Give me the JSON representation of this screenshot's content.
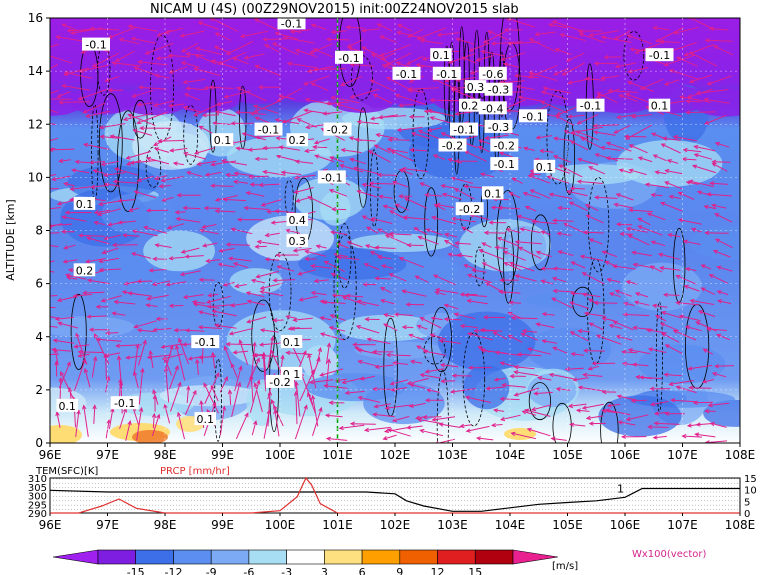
{
  "title": "NICAM U (4S) (00Z29NOV2015) init:00Z24NOV2015 slab",
  "colors": {
    "vector": "#e0208c",
    "temp_line": "#000000",
    "prcp_line": "#e03030",
    "guide_line": "#00a000"
  },
  "chart_data": [
    {
      "type": "heatmap",
      "title": "NICAM U (4S) (00Z29NOV2015) init:00Z24NOV2015 slab",
      "xlabel": "",
      "ylabel": "ALTITUDE [km]",
      "xlim": [
        96,
        108
      ],
      "ylim": [
        0,
        16
      ],
      "x_ticks": [
        "96E",
        "97E",
        "98E",
        "99E",
        "100E",
        "101E",
        "102E",
        "103E",
        "104E",
        "105E",
        "106E",
        "107E",
        "108E"
      ],
      "y_ticks": [
        "0",
        "2",
        "4",
        "6",
        "8",
        "10",
        "12",
        "14",
        "16"
      ],
      "vertical_guide_lon": 101,
      "overlay": "Wx100(vector)",
      "contour_labels": [
        {
          "lon": 96.8,
          "alt": 15.0,
          "text": "-0.1"
        },
        {
          "lon": 100.2,
          "alt": 15.8,
          "text": "-0.1"
        },
        {
          "lon": 101.2,
          "alt": 14.5,
          "text": "-0.1"
        },
        {
          "lon": 102.2,
          "alt": 13.9,
          "text": "-0.1"
        },
        {
          "lon": 102.8,
          "alt": 14.6,
          "text": "0.1"
        },
        {
          "lon": 102.9,
          "alt": 13.9,
          "text": "-0.1"
        },
        {
          "lon": 103.4,
          "alt": 13.4,
          "text": "0.3"
        },
        {
          "lon": 103.7,
          "alt": 13.9,
          "text": "-0.6"
        },
        {
          "lon": 103.8,
          "alt": 13.3,
          "text": "-0.3"
        },
        {
          "lon": 103.3,
          "alt": 12.7,
          "text": "0.2"
        },
        {
          "lon": 103.7,
          "alt": 12.6,
          "text": "-0.4"
        },
        {
          "lon": 104.4,
          "alt": 12.3,
          "text": "-0.1"
        },
        {
          "lon": 105.4,
          "alt": 12.7,
          "text": "-0.1"
        },
        {
          "lon": 106.6,
          "alt": 14.6,
          "text": "-0.1"
        },
        {
          "lon": 106.6,
          "alt": 12.7,
          "text": "0.1"
        },
        {
          "lon": 99.8,
          "alt": 11.8,
          "text": "-0.1"
        },
        {
          "lon": 100.3,
          "alt": 11.4,
          "text": "0.2"
        },
        {
          "lon": 101.0,
          "alt": 11.8,
          "text": "-0.2"
        },
        {
          "lon": 103.2,
          "alt": 11.8,
          "text": "-0.1"
        },
        {
          "lon": 103.8,
          "alt": 11.9,
          "text": "-0.3"
        },
        {
          "lon": 103.0,
          "alt": 11.2,
          "text": "-0.2"
        },
        {
          "lon": 103.9,
          "alt": 11.2,
          "text": "-0.2"
        },
        {
          "lon": 103.9,
          "alt": 10.5,
          "text": "-0.1"
        },
        {
          "lon": 104.6,
          "alt": 10.4,
          "text": "0.1"
        },
        {
          "lon": 99.0,
          "alt": 11.4,
          "text": "0.1"
        },
        {
          "lon": 100.9,
          "alt": 10.0,
          "text": "-0.1"
        },
        {
          "lon": 103.7,
          "alt": 9.4,
          "text": "0.1"
        },
        {
          "lon": 103.3,
          "alt": 8.8,
          "text": "-0.2"
        },
        {
          "lon": 96.6,
          "alt": 9.0,
          "text": "0.1"
        },
        {
          "lon": 100.3,
          "alt": 8.4,
          "text": "0.4"
        },
        {
          "lon": 100.3,
          "alt": 7.6,
          "text": "0.3"
        },
        {
          "lon": 96.6,
          "alt": 6.5,
          "text": "0.2"
        },
        {
          "lon": 98.7,
          "alt": 3.8,
          "text": "-0.1"
        },
        {
          "lon": 100.2,
          "alt": 3.8,
          "text": "0.1"
        },
        {
          "lon": 100.2,
          "alt": 2.6,
          "text": "0.1"
        },
        {
          "lon": 100.0,
          "alt": 2.3,
          "text": "-0.2"
        },
        {
          "lon": 96.3,
          "alt": 1.4,
          "text": "0.1"
        },
        {
          "lon": 97.3,
          "alt": 1.5,
          "text": "-0.1"
        },
        {
          "lon": 98.7,
          "alt": 0.9,
          "text": "0.1"
        }
      ]
    },
    {
      "type": "line",
      "xlim": [
        96,
        108
      ],
      "x_ticks": [
        "96E",
        "97E",
        "98E",
        "99E",
        "100E",
        "101E",
        "102E",
        "103E",
        "104E",
        "105E",
        "106E",
        "107E",
        "108E"
      ],
      "series": [
        {
          "name": "TEM(SFC)[K]",
          "axis": "left",
          "ylim": [
            290,
            310
          ],
          "x": [
            96,
            97,
            98,
            99,
            100,
            100.5,
            101,
            101.5,
            102,
            102.2,
            102.5,
            103,
            103.5,
            104,
            104.5,
            105,
            105.5,
            106,
            106.3,
            108
          ],
          "values": [
            303,
            302,
            302,
            302,
            302,
            302,
            302,
            302,
            301,
            297,
            294,
            291,
            291,
            293,
            295,
            296,
            297,
            299,
            304,
            304
          ]
        },
        {
          "name": "PRCP [mm/hr]",
          "axis": "right",
          "ylim": [
            0,
            15
          ],
          "x": [
            96,
            96.5,
            96.9,
            97.2,
            97.5,
            98,
            99,
            99.5,
            100,
            100.3,
            100.45,
            100.55,
            100.7,
            101,
            102,
            104,
            106,
            108
          ],
          "values": [
            0,
            0,
            3,
            6,
            2,
            0,
            0,
            0,
            1,
            7,
            15,
            12,
            4,
            0,
            0,
            0,
            0,
            0
          ]
        }
      ],
      "left_ticks": [
        "290",
        "295",
        "300",
        "305",
        "310"
      ],
      "right_ticks": [
        "0",
        "5",
        "10",
        "15"
      ],
      "annotation": {
        "lon": 106,
        "text": "1"
      }
    }
  ],
  "colorbar": {
    "ticks": [
      "-15",
      "-12",
      "-9",
      "-6",
      "-3",
      "3",
      "6",
      "9",
      "12",
      "15"
    ],
    "unit": "[m/s]",
    "colors": [
      "#a020f0",
      "#7e1ee0",
      "#3d6fe8",
      "#5b8ef0",
      "#7caaf4",
      "#a8def4",
      "#ffffff",
      "#ffe080",
      "#ffa000",
      "#f06000",
      "#e02020",
      "#b00010",
      "#e82090"
    ]
  },
  "vector_legend": "Wx100(vector)"
}
